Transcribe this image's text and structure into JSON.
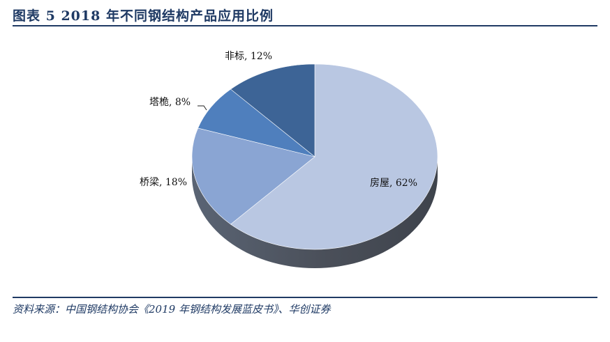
{
  "header": {
    "title": "图表 5  2018 年不同钢结构产品应用比例"
  },
  "footer": {
    "source": "资料来源：中国钢结构协会《2019 年钢结构发展蓝皮书》、华创证券"
  },
  "chart_data": {
    "type": "pie",
    "title": "",
    "style": "3d",
    "legend": "none",
    "slices": [
      {
        "label": "房屋",
        "value": 62,
        "display": "房屋, 62%",
        "color": "#b9c7e2",
        "side_color": "#4f5562"
      },
      {
        "label": "桥梁",
        "value": 18,
        "display": "桥梁, 18%",
        "color": "#8aa5d3",
        "side_color": "#465262"
      },
      {
        "label": "塔桅",
        "value": 8,
        "display": "塔桅, 8%",
        "color": "#4f7fbd",
        "side_color": "#3b4d66"
      },
      {
        "label": "非标",
        "value": 12,
        "display": "非标, 12%",
        "color": "#3d6496",
        "side_color": "#33455c"
      }
    ]
  }
}
